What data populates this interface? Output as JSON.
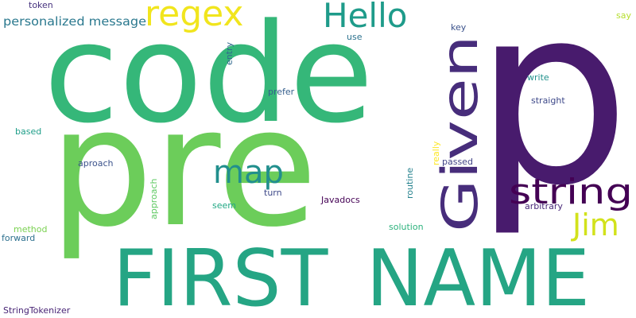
{
  "words": [
    {
      "id": "p",
      "text": "p",
      "color": "#481b6d",
      "rotated": false
    },
    {
      "id": "code",
      "text": "code",
      "color": "#35b779",
      "rotated": false
    },
    {
      "id": "pre",
      "text": "pre",
      "color": "#6ccd5a",
      "rotated": false
    },
    {
      "id": "first-name",
      "text": "FIRST_NAME",
      "color": "#25a584",
      "rotated": false
    },
    {
      "id": "given",
      "text": "Given",
      "color": "#472d7b",
      "rotated": true
    },
    {
      "id": "regex",
      "text": "regex",
      "color": "#f1e51d",
      "rotated": false
    },
    {
      "id": "hello",
      "text": "Hello",
      "color": "#1e9b8a",
      "rotated": false
    },
    {
      "id": "string",
      "text": "string",
      "color": "#440154",
      "rotated": false
    },
    {
      "id": "map",
      "text": "map",
      "color": "#218f8d",
      "rotated": false
    },
    {
      "id": "jim",
      "text": "Jim",
      "color": "#d2e21b",
      "rotated": false
    },
    {
      "id": "personalized-message",
      "text": "personalized message",
      "color": "#2a788e",
      "rotated": false
    },
    {
      "id": "token",
      "text": "token",
      "color": "#46327e",
      "rotated": false
    },
    {
      "id": "entry",
      "text": "entry",
      "color": "#31688e",
      "rotated": true
    },
    {
      "id": "use",
      "text": "use",
      "color": "#2c728e",
      "rotated": false
    },
    {
      "id": "key",
      "text": "key",
      "color": "#3b528b",
      "rotated": false
    },
    {
      "id": "say",
      "text": "say",
      "color": "#b5de2b",
      "rotated": false
    },
    {
      "id": "prefer",
      "text": "prefer",
      "color": "#355f8d",
      "rotated": false
    },
    {
      "id": "write",
      "text": "write",
      "color": "#21918c",
      "rotated": false
    },
    {
      "id": "straight",
      "text": "straight",
      "color": "#3e4989",
      "rotated": false
    },
    {
      "id": "based",
      "text": "based",
      "color": "#1f9e89",
      "rotated": false
    },
    {
      "id": "really",
      "text": "really",
      "color": "#fde725",
      "rotated": true
    },
    {
      "id": "aproach",
      "text": "aproach",
      "color": "#3b528b",
      "rotated": false
    },
    {
      "id": "passed",
      "text": "passed",
      "color": "#414487",
      "rotated": false
    },
    {
      "id": "routine",
      "text": "routine",
      "color": "#26828e",
      "rotated": true
    },
    {
      "id": "approach",
      "text": "approach",
      "color": "#5ec962",
      "rotated": true
    },
    {
      "id": "turn",
      "text": "turn",
      "color": "#3e4989",
      "rotated": false
    },
    {
      "id": "javadocs",
      "text": "Javadocs",
      "color": "#440154",
      "rotated": false
    },
    {
      "id": "seem",
      "text": "seem",
      "color": "#22a884",
      "rotated": false
    },
    {
      "id": "arbitrary",
      "text": "arbitrary",
      "color": "#482878",
      "rotated": false
    },
    {
      "id": "method",
      "text": "method",
      "color": "#7ad151",
      "rotated": false
    },
    {
      "id": "forward",
      "text": "forward",
      "color": "#2d708e",
      "rotated": false
    },
    {
      "id": "solution",
      "text": "solution",
      "color": "#2db27d",
      "rotated": false
    },
    {
      "id": "stringtokenizer",
      "text": "StringTokenizer",
      "color": "#482475",
      "rotated": false
    }
  ]
}
